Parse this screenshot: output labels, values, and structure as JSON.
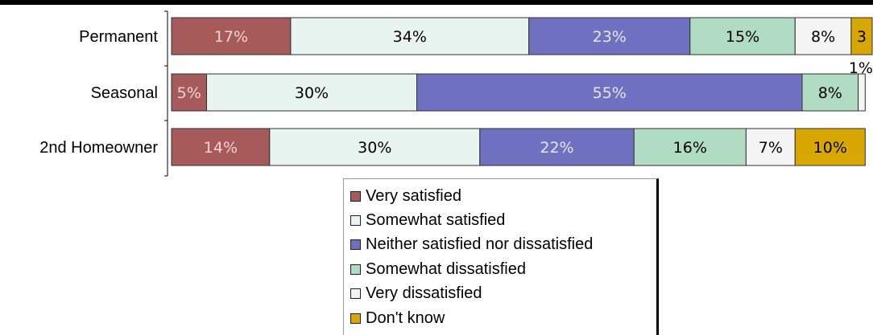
{
  "chart_data": {
    "type": "bar",
    "orientation": "horizontal",
    "stacked": true,
    "categories": [
      "Permanent",
      "Seasonal",
      "2nd Homeowner"
    ],
    "series": [
      {
        "name": "Very satisfied",
        "color": "#A65A5A",
        "values": [
          17,
          5,
          14
        ],
        "label_color": "#F2D4D4"
      },
      {
        "name": "Somewhat satisfied",
        "color": "#E8F4F0",
        "values": [
          34,
          30,
          30
        ],
        "label_color": "#000000"
      },
      {
        "name": "Neither satisfied nor dissatisfied",
        "color": "#7070C0",
        "values": [
          23,
          55,
          22
        ],
        "label_color": "#E6E6FA"
      },
      {
        "name": "Somewhat dissatisfied",
        "color": "#B0DCC4",
        "values": [
          15,
          8,
          16
        ],
        "label_color": "#000000"
      },
      {
        "name": "Very dissatisfied",
        "color": "#F4F4F4",
        "values": [
          8,
          1,
          7
        ],
        "label_color": "#000000"
      },
      {
        "name": "Don't know",
        "color": "#D8A800",
        "values": [
          3,
          0,
          10
        ],
        "label_color": "#000000"
      }
    ],
    "data_labels": [
      [
        "17%",
        "34%",
        "23%",
        "15%",
        "8%",
        "3"
      ],
      [
        "5%",
        "30%",
        "55%",
        "8%",
        "1%",
        ""
      ],
      [
        "14%",
        "30%",
        "22%",
        "16%",
        "7%",
        "10%"
      ]
    ],
    "xlim": [
      0,
      100
    ],
    "legend_position": "bottom",
    "grid": false
  }
}
